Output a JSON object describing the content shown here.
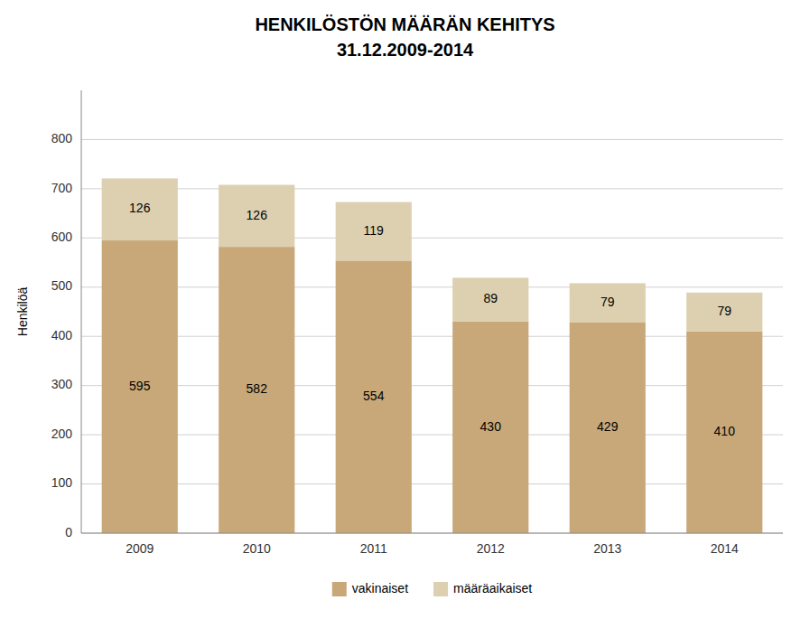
{
  "chart_data": {
    "type": "bar",
    "title": "HENKILÖSTÖN MÄÄRÄN KEHITYS",
    "subtitle": "31.12.2009-2014",
    "ylabel": "Henkilöä",
    "categories": [
      "2009",
      "2010",
      "2011",
      "2012",
      "2013",
      "2014"
    ],
    "series": [
      {
        "name": "vakinaiset",
        "color": "#C8A878",
        "values": [
          595,
          582,
          554,
          430,
          429,
          410
        ]
      },
      {
        "name": "määräaikaiset",
        "color": "#DDD0B0",
        "values": [
          126,
          126,
          119,
          89,
          79,
          79
        ]
      }
    ],
    "stacked": true,
    "data_labels": true,
    "grid": true,
    "legend": "bottom",
    "ylim": [
      0,
      900
    ],
    "yticks": [
      0,
      100,
      200,
      300,
      400,
      500,
      600,
      700,
      800
    ]
  }
}
